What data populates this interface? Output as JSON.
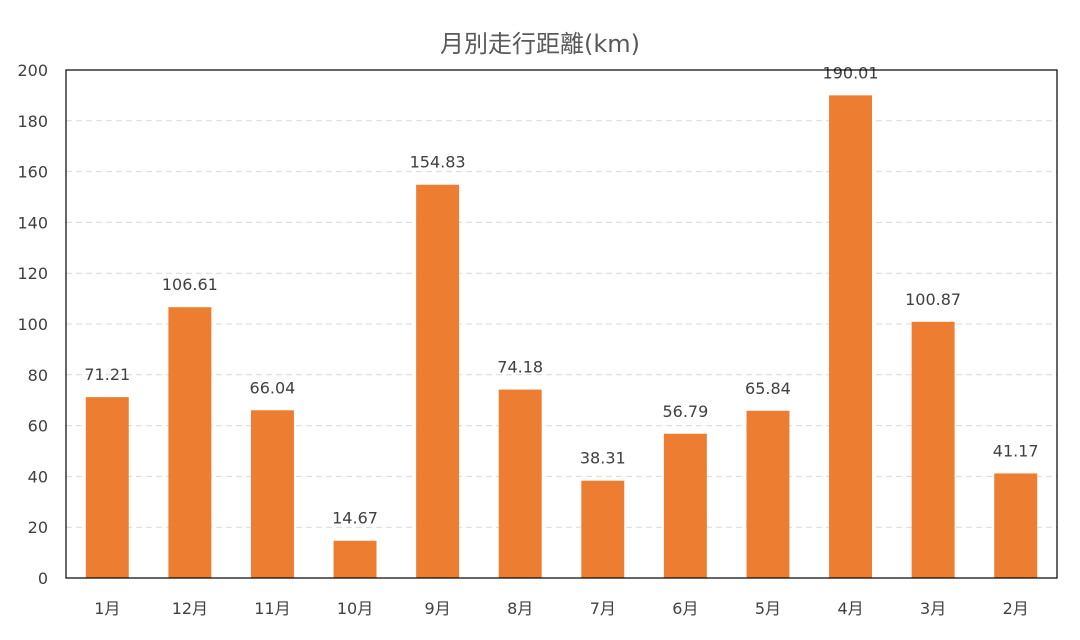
{
  "chart_data": {
    "type": "bar",
    "title": "月別走行距離(km)",
    "xlabel": "",
    "ylabel": "",
    "categories": [
      "1月",
      "12月",
      "11月",
      "10月",
      "9月",
      "8月",
      "7月",
      "6月",
      "5月",
      "4月",
      "3月",
      "2月"
    ],
    "values": [
      71.21,
      106.61,
      66.04,
      14.67,
      154.83,
      74.18,
      38.31,
      56.79,
      65.84,
      190.01,
      100.87,
      41.17
    ],
    "data_labels": [
      "71.21",
      "106.61",
      "66.04",
      "14.67",
      "154.83",
      "74.18",
      "38.31",
      "56.79",
      "65.84",
      "190.01",
      "100.87",
      "41.17"
    ],
    "y_ticks": [
      "0",
      "20",
      "40",
      "60",
      "80",
      "100",
      "120",
      "140",
      "160",
      "180",
      "200"
    ],
    "ylim": [
      0,
      200
    ],
    "grid": true,
    "legend": "none",
    "bar_color": "#ED7D31",
    "grid_color": "#D9D9D9",
    "axis_color": "#000000"
  }
}
